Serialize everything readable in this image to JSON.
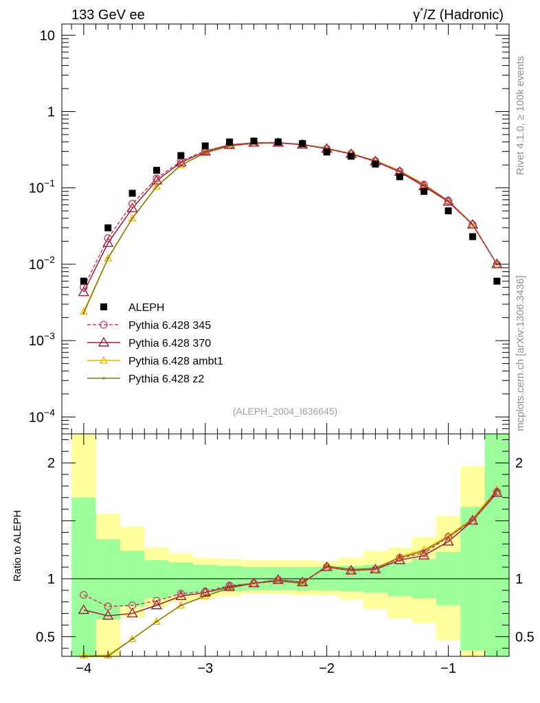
{
  "header": {
    "left": "133 GeV ee",
    "right_prefix": "γ",
    "right_sup": "*",
    "right_suffix": "/Z (Hadronic)"
  },
  "side_labels": {
    "rivet": "Rivet 4.1.0, ≥ 100k events",
    "mcplots": "mcplots.cern.ch [arXiv:1306.3436]"
  },
  "analysis_tag": "(ALEPH_2004_I636645)",
  "colors": {
    "data": "#000000",
    "p345": "#c0425f",
    "p370": "#9b1b36",
    "ambt1": "#f0b400",
    "z2": "#7f7a00",
    "band_inner": "#9cff9c",
    "band_outer": "#ffff9c"
  },
  "chart_data": {
    "type": "line",
    "top_panel": {
      "yscale": "log",
      "ylim": [
        6e-05,
        14
      ],
      "xlim": [
        -4.18,
        -0.5
      ],
      "y_ticks": [
        {
          "v": 10,
          "base": "10",
          "exp": ""
        },
        {
          "v": 1,
          "base": "1",
          "exp": ""
        },
        {
          "v": 0.1,
          "base": "10",
          "exp": "−1"
        },
        {
          "v": 0.01,
          "base": "10",
          "exp": "−2"
        },
        {
          "v": 0.001,
          "base": "10",
          "exp": "−3"
        },
        {
          "v": 0.0001,
          "base": "10",
          "exp": "−4"
        }
      ]
    },
    "bottom_panel": {
      "ylabel": "Ratio to ALEPH",
      "ylim": [
        0.33,
        2.25
      ],
      "y_ticks": [
        {
          "v": 2,
          "label": "2"
        },
        {
          "v": 1,
          "label": "1"
        },
        {
          "v": 0.5,
          "label": "0.5"
        }
      ]
    },
    "x_ticks": [
      {
        "v": -4,
        "label": "−4"
      },
      {
        "v": -3,
        "label": "−3"
      },
      {
        "v": -2,
        "label": "−2"
      },
      {
        "v": -1,
        "label": "−1"
      }
    ],
    "x": [
      -4.0,
      -3.8,
      -3.6,
      -3.4,
      -3.2,
      -3.0,
      -2.8,
      -2.6,
      -2.4,
      -2.2,
      -2.0,
      -1.8,
      -1.6,
      -1.4,
      -1.2,
      -1.0,
      -0.8,
      -0.6
    ],
    "bin_edges": [
      -4.1,
      -3.9,
      -3.7,
      -3.5,
      -3.3,
      -3.1,
      -2.9,
      -2.7,
      -2.5,
      -2.3,
      -2.1,
      -1.9,
      -1.7,
      -1.5,
      -1.3,
      -1.1,
      -0.9,
      -0.7,
      -0.5
    ],
    "data": {
      "name": "ALEPH",
      "values": [
        0.006,
        0.03,
        0.085,
        0.17,
        0.265,
        0.355,
        0.4,
        0.41,
        0.4,
        0.38,
        0.295,
        0.26,
        0.205,
        0.14,
        0.09,
        0.05,
        0.023,
        0.006
      ],
      "band_inner": [
        [
          0.31,
          1.7
        ],
        [
          0.65,
          1.34
        ],
        [
          0.76,
          1.24
        ],
        [
          0.83,
          1.16
        ],
        [
          0.86,
          1.14
        ],
        [
          0.88,
          1.12
        ],
        [
          0.89,
          1.11
        ],
        [
          0.9,
          1.1
        ],
        [
          0.9,
          1.1
        ],
        [
          0.9,
          1.1
        ],
        [
          0.9,
          1.1
        ],
        [
          0.89,
          1.11
        ],
        [
          0.88,
          1.12
        ],
        [
          0.85,
          1.14
        ],
        [
          0.83,
          1.17
        ],
        [
          0.77,
          1.23
        ],
        [
          0.38,
          1.62
        ],
        [
          0.33,
          2.25
        ]
      ],
      "band_outer": [
        [
          0.31,
          2.25
        ],
        [
          0.31,
          1.56
        ],
        [
          0.67,
          1.45
        ],
        [
          0.76,
          1.27
        ],
        [
          0.8,
          1.22
        ],
        [
          0.83,
          1.18
        ],
        [
          0.85,
          1.17
        ],
        [
          0.87,
          1.16
        ],
        [
          0.87,
          1.16
        ],
        [
          0.86,
          1.16
        ],
        [
          0.86,
          1.15
        ],
        [
          0.82,
          1.18
        ],
        [
          0.74,
          1.24
        ],
        [
          0.66,
          1.27
        ],
        [
          0.62,
          1.36
        ],
        [
          0.47,
          1.54
        ],
        [
          0.33,
          1.97
        ],
        [
          0.33,
          2.25
        ]
      ]
    },
    "series": [
      {
        "name": "Pythia 6.428 345",
        "key": "p345",
        "marker": "circle",
        "dash": true,
        "values": [
          0.005,
          0.022,
          0.062,
          0.133,
          0.225,
          0.305,
          0.368,
          0.39,
          0.395,
          0.37,
          0.325,
          0.28,
          0.225,
          0.165,
          0.11,
          0.068,
          0.033,
          0.01
        ],
        "ratio": [
          0.86,
          0.76,
          0.77,
          0.81,
          0.87,
          0.89,
          0.94,
          0.96,
          0.99,
          0.97,
          1.1,
          1.07,
          1.08,
          1.18,
          1.22,
          1.36,
          1.5,
          1.75
        ]
      },
      {
        "name": "Pythia 6.428 370",
        "key": "p370",
        "marker": "triangle",
        "dash": false,
        "values": [
          0.0043,
          0.019,
          0.054,
          0.125,
          0.215,
          0.3,
          0.365,
          0.39,
          0.39,
          0.368,
          0.325,
          0.278,
          0.222,
          0.162,
          0.105,
          0.066,
          0.033,
          0.01
        ],
        "ratio": [
          0.73,
          0.68,
          0.7,
          0.77,
          0.85,
          0.88,
          0.93,
          0.96,
          0.99,
          0.97,
          1.1,
          1.07,
          1.08,
          1.16,
          1.2,
          1.32,
          1.5,
          1.74
        ]
      },
      {
        "name": "Pythia 6.428 ambt1",
        "key": "ambt1",
        "marker": "triangle-small",
        "dash": false,
        "values": [
          0.0024,
          0.012,
          0.04,
          0.105,
          0.2,
          0.29,
          0.355,
          0.385,
          0.39,
          0.372,
          0.33,
          0.282,
          0.228,
          0.168,
          0.112,
          0.068,
          0.034,
          0.01
        ],
        "ratio": [
          0.34,
          0.34,
          0.48,
          0.63,
          0.77,
          0.85,
          0.92,
          0.96,
          0.98,
          0.96,
          1.11,
          1.08,
          1.09,
          1.19,
          1.25,
          1.37,
          1.52,
          1.77
        ]
      },
      {
        "name": "Pythia 6.428 z2",
        "key": "z2",
        "marker": "dot",
        "dash": false,
        "values": [
          0.0023,
          0.012,
          0.04,
          0.104,
          0.198,
          0.288,
          0.353,
          0.383,
          0.388,
          0.37,
          0.33,
          0.28,
          0.226,
          0.166,
          0.11,
          0.067,
          0.033,
          0.01
        ],
        "ratio": [
          0.3,
          0.3,
          0.48,
          0.63,
          0.77,
          0.85,
          0.92,
          0.96,
          0.98,
          0.96,
          1.11,
          1.08,
          1.09,
          1.18,
          1.24,
          1.36,
          1.51,
          1.76
        ]
      }
    ]
  }
}
